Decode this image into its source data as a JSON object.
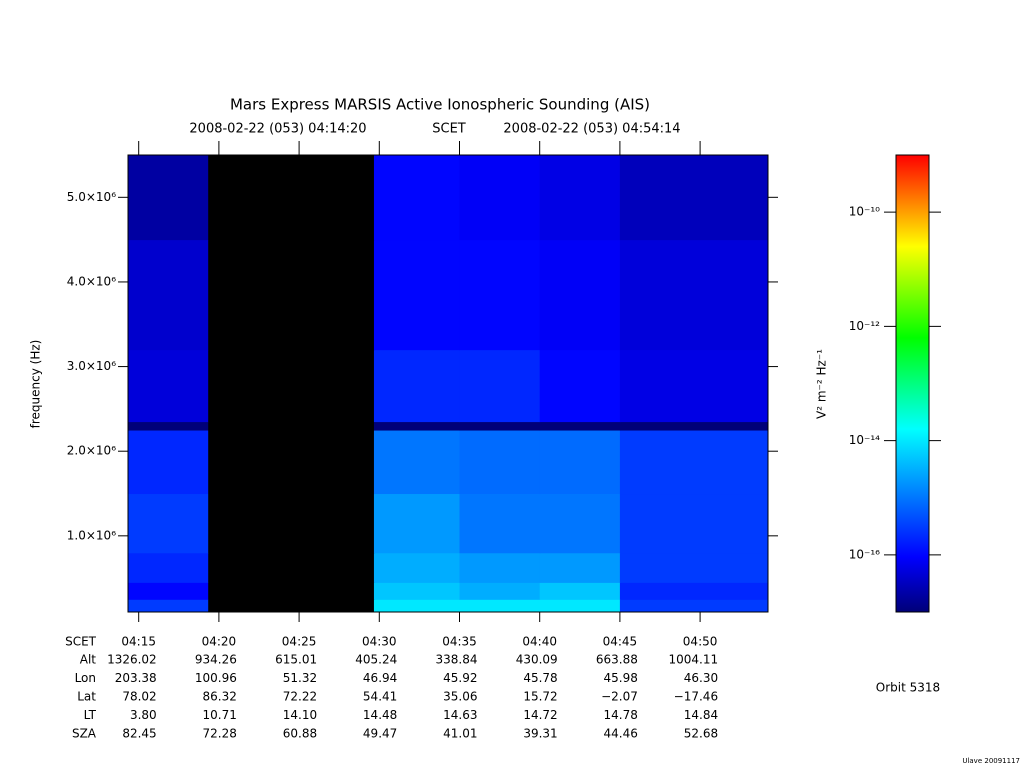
{
  "chart_data": {
    "type": "spectrogram",
    "title": "Mars Express MARSIS Active Ionospheric Sounding (AIS)",
    "start": "2008-02-22 (053) 04:14:20",
    "time_label": "SCET",
    "end": "2008-02-22 (053) 04:54:14",
    "ylabel": "frequency (Hz)",
    "xlim": [
      "04:14:20",
      "04:54:14"
    ],
    "xticks": [
      "04:15",
      "04:20",
      "04:25",
      "04:30",
      "04:35",
      "04:40",
      "04:45",
      "04:50"
    ],
    "ylim": [
      100000,
      5500000
    ],
    "yticks": [
      {
        "value": 1000000,
        "label": "1.0×10⁶"
      },
      {
        "value": 2000000,
        "label": "2.0×10⁶"
      },
      {
        "value": 3000000,
        "label": "3.0×10⁶"
      },
      {
        "value": 4000000,
        "label": "4.0×10⁶"
      },
      {
        "value": 5000000,
        "label": "5.0×10⁶"
      }
    ],
    "spectrogram": {
      "time_edges": [
        "04:14:20",
        "04:19:20",
        "04:29:40",
        "04:35:00",
        "04:40:00",
        "04:45:00",
        "04:54:14"
      ],
      "freq_edges": [
        100000,
        250000,
        450000,
        800000,
        1500000,
        2250000,
        2350000,
        3200000,
        4500000,
        5500000
      ],
      "values": [
        [
          3e-16,
          null,
          1e-14,
          1e-14,
          1e-14,
          3e-16
        ],
        [
          1e-16,
          null,
          5e-15,
          3e-15,
          5e-15,
          2e-16
        ],
        [
          2e-16,
          null,
          3e-15,
          2e-15,
          2e-15,
          3e-16
        ],
        [
          3e-16,
          null,
          2e-15,
          1e-15,
          1e-15,
          3e-16
        ],
        [
          2e-16,
          null,
          1e-15,
          8e-16,
          8e-16,
          3e-16
        ],
        [
          1e-17,
          null,
          1e-17,
          1e-17,
          1e-17,
          1e-17
        ],
        [
          5e-17,
          null,
          2e-16,
          2e-16,
          1e-16,
          6e-17
        ],
        [
          4e-17,
          null,
          1e-16,
          1e-16,
          8e-17,
          5e-17
        ],
        [
          2e-17,
          null,
          1e-16,
          8e-17,
          6e-17,
          3e-17
        ]
      ]
    },
    "color_scale": "log",
    "clim": [
      1e-17,
      1e-09
    ],
    "cticks": [
      {
        "value": 1e-10,
        "label": "10⁻¹⁰"
      },
      {
        "value": 1e-12,
        "label": "10⁻¹²"
      },
      {
        "value": 1e-14,
        "label": "10⁻¹⁴"
      },
      {
        "value": 1e-16,
        "label": "10⁻¹⁶"
      }
    ],
    "clabel": "V² m⁻² Hz⁻¹",
    "ephemeris": {
      "time_label": "SCET",
      "labels": [
        "Alt",
        "Lon",
        "Lat",
        "LT",
        "SZA"
      ],
      "rows": [
        [
          "1326.02",
          "934.26",
          "615.01",
          "405.24",
          "338.84",
          "430.09",
          "663.88",
          "1004.11"
        ],
        [
          "203.38",
          "100.96",
          "51.32",
          "46.94",
          "45.92",
          "45.78",
          "45.98",
          "46.30"
        ],
        [
          "78.02",
          "86.32",
          "72.22",
          "54.41",
          "35.06",
          "15.72",
          "−2.07",
          "−17.46"
        ],
        [
          "3.80",
          "10.71",
          "14.10",
          "14.48",
          "14.63",
          "14.72",
          "14.78",
          "14.84"
        ],
        [
          "82.45",
          "72.28",
          "60.88",
          "49.47",
          "41.01",
          "39.31",
          "44.46",
          "52.68"
        ]
      ]
    },
    "orbit": "Orbit 5318",
    "credit": "Ulave 20091117"
  }
}
